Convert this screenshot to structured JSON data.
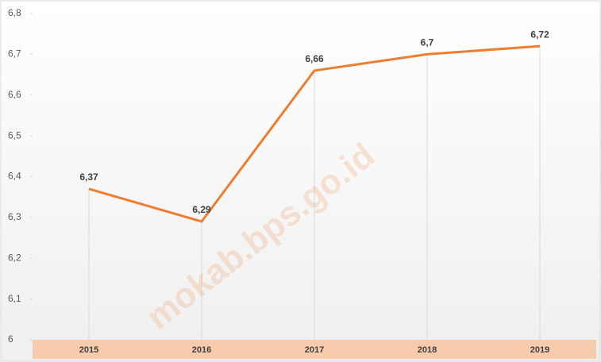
{
  "chart_data": {
    "type": "line",
    "categories": [
      "2015",
      "2016",
      "2017",
      "2018",
      "2019"
    ],
    "series": [
      {
        "name": null,
        "color": "#ed7d31",
        "values": [
          6.37,
          6.29,
          6.66,
          6.7,
          6.72
        ],
        "value_labels": [
          "6,37",
          "6,29",
          "6,66",
          "6,7",
          "6,72"
        ]
      }
    ],
    "ylim": [
      6,
      6.8
    ],
    "yticks": [
      6,
      {
        "value": 6.1,
        "label": "6,1"
      },
      {
        "value": 6.2,
        "label": "6,2"
      },
      {
        "value": 6.3,
        "label": "6,3"
      },
      {
        "value": 6.4,
        "label": "6,4"
      },
      {
        "value": 6.5,
        "label": "6,5"
      },
      {
        "value": 6.6,
        "label": "6,6"
      },
      {
        "value": 6.7,
        "label": "6,7"
      },
      {
        "value": 6.8,
        "label": "6,8"
      }
    ],
    "watermark": "mokab.bps.go.id"
  }
}
